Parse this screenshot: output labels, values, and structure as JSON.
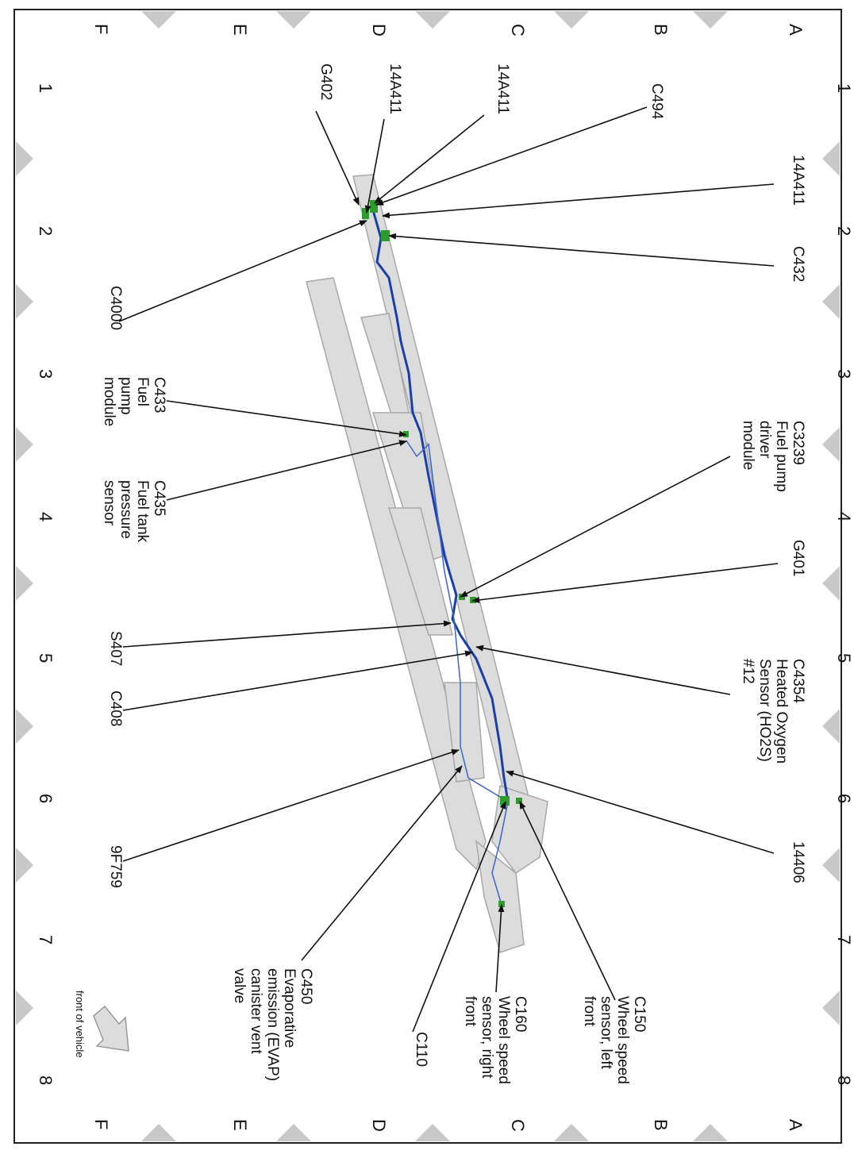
{
  "grid": {
    "top": [
      "A",
      "B",
      "C",
      "D",
      "E",
      "F"
    ],
    "bottom": [
      "A",
      "B",
      "C",
      "D",
      "E",
      "F"
    ],
    "left": [
      "1",
      "2",
      "3",
      "4",
      "5",
      "6",
      "7",
      "8"
    ],
    "right": [
      "1",
      "2",
      "3",
      "4",
      "5",
      "6",
      "7",
      "8"
    ]
  },
  "callouts": [
    {
      "lines": [
        "C494"
      ]
    },
    {
      "lines": [
        "14A411"
      ]
    },
    {
      "lines": [
        "14A411"
      ]
    },
    {
      "lines": [
        "G402"
      ]
    },
    {
      "lines": [
        "14A411"
      ]
    },
    {
      "lines": [
        "C432"
      ]
    },
    {
      "lines": [
        "C4000"
      ]
    },
    {
      "lines": [
        "C433",
        "Fuel",
        "pump",
        "module"
      ]
    },
    {
      "lines": [
        "C435",
        "Fuel tank",
        "pressure",
        "sensor"
      ]
    },
    {
      "lines": [
        "C3239",
        "Fuel pump",
        "driver",
        "module"
      ]
    },
    {
      "lines": [
        "G401"
      ]
    },
    {
      "lines": [
        "S407"
      ]
    },
    {
      "lines": [
        "C4354",
        "Heated Oxygen",
        "Sensor (HO2S)",
        "#12"
      ]
    },
    {
      "lines": [
        "C408"
      ]
    },
    {
      "lines": [
        "9F759"
      ]
    },
    {
      "lines": [
        "C450",
        "Evaporative",
        "emission (EVAP)",
        "canister vent",
        "valve"
      ]
    },
    {
      "lines": [
        "14406"
      ]
    },
    {
      "lines": [
        "C150",
        "Wheel speed",
        "sensor, left",
        "front"
      ]
    },
    {
      "lines": [
        "C110"
      ]
    },
    {
      "lines": [
        "C160",
        "Wheel speed",
        "sensor, right",
        "front"
      ]
    }
  ],
  "front_label": "front of vehicle"
}
